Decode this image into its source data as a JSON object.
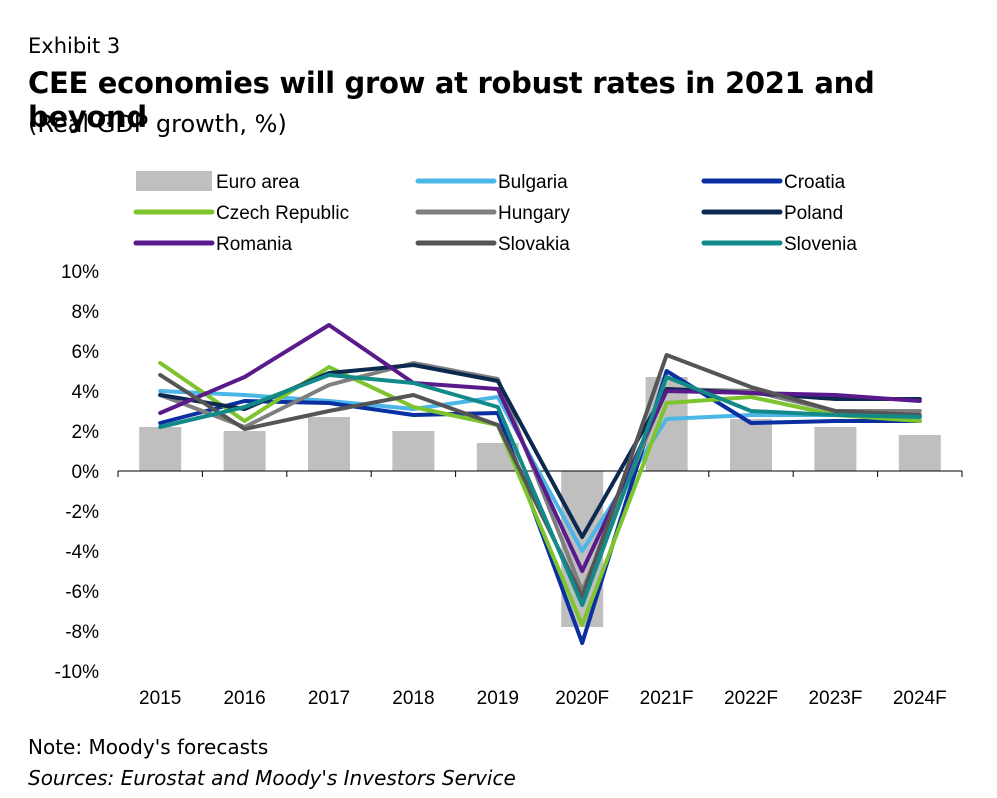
{
  "header": {
    "exhibit": "Exhibit 3",
    "title": "CEE economies will grow at robust rates in 2021 and beyond",
    "subtitle": "(Real GDP growth, %)"
  },
  "footer": {
    "note": "Note: Moody's forecasts",
    "sources": "Sources: Eurostat and Moody's Investors Service"
  },
  "chart_data": {
    "type": "bar",
    "categories": [
      "2015",
      "2016",
      "2017",
      "2018",
      "2019",
      "2020F",
      "2021F",
      "2022F",
      "2023F",
      "2024F"
    ],
    "ylim": [
      -10,
      10
    ],
    "yticks": [
      10,
      8,
      6,
      4,
      2,
      0,
      -2,
      -4,
      -6,
      -8,
      -10
    ],
    "ytick_labels": [
      "10%",
      "8%",
      "6%",
      "4%",
      "2%",
      "0%",
      "-2%",
      "-4%",
      "-6%",
      "-8%",
      "-10%"
    ],
    "legend_placement": "top",
    "bar_series": {
      "name": "Euro area",
      "color": "#bfbfbf",
      "values": [
        2.2,
        2.0,
        2.7,
        2.0,
        1.4,
        -7.8,
        4.7,
        2.6,
        2.2,
        1.8
      ]
    },
    "line_series": [
      {
        "name": "Bulgaria",
        "color": "#4cb6e6",
        "values": [
          4.0,
          3.8,
          3.5,
          3.1,
          3.7,
          -4.0,
          2.6,
          2.8,
          2.8,
          2.7
        ]
      },
      {
        "name": "Croatia",
        "color": "#0a2fa0",
        "values": [
          2.4,
          3.5,
          3.4,
          2.8,
          2.9,
          -8.6,
          5.0,
          2.4,
          2.5,
          2.5
        ]
      },
      {
        "name": "Czech Republic",
        "color": "#7dc42e",
        "values": [
          5.4,
          2.5,
          5.2,
          3.2,
          2.3,
          -7.7,
          3.4,
          3.7,
          2.8,
          2.5
        ]
      },
      {
        "name": "Hungary",
        "color": "#7f7f7f",
        "values": [
          3.8,
          2.2,
          4.3,
          5.4,
          4.6,
          -6.0,
          4.1,
          4.0,
          3.0,
          3.0
        ]
      },
      {
        "name": "Poland",
        "color": "#0c2a50",
        "values": [
          3.8,
          3.1,
          4.9,
          5.3,
          4.5,
          -3.3,
          4.1,
          3.9,
          3.6,
          3.6
        ]
      },
      {
        "name": "Romania",
        "color": "#5a1a8c",
        "values": [
          2.9,
          4.7,
          7.3,
          4.4,
          4.1,
          -5.0,
          4.0,
          3.9,
          3.8,
          3.5
        ]
      },
      {
        "name": "Slovakia",
        "color": "#555555",
        "values": [
          4.8,
          2.1,
          3.0,
          3.8,
          2.3,
          -6.3,
          5.8,
          4.2,
          3.0,
          2.8
        ]
      },
      {
        "name": "Slovenia",
        "color": "#138a8a",
        "values": [
          2.2,
          3.2,
          4.8,
          4.4,
          3.2,
          -6.7,
          4.7,
          3.0,
          2.8,
          2.7
        ]
      }
    ]
  }
}
